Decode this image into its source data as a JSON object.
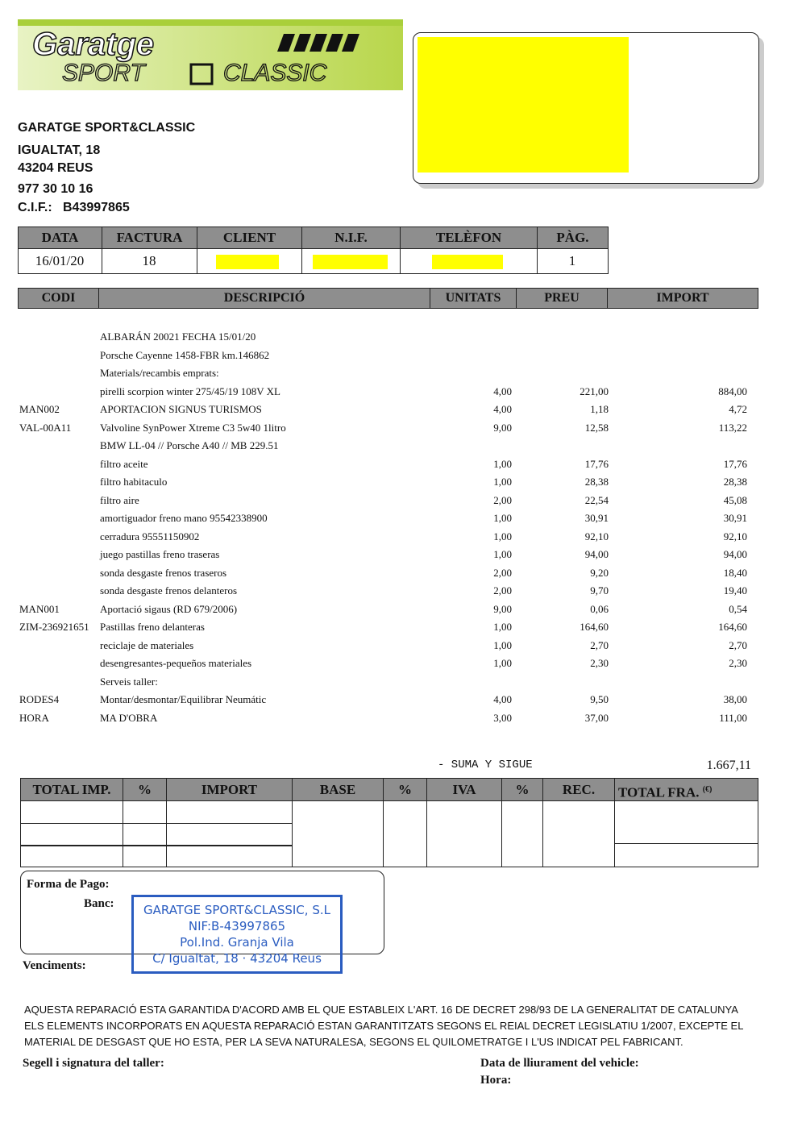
{
  "logo": {
    "line1": "Garatge",
    "line2": "SPORT",
    "line3": "CLASSIC"
  },
  "company": {
    "name": "GARATGE SPORT&CLASSIC",
    "address": "IGUALTAT, 18",
    "city": "43204 REUS",
    "phone": "977 30 10 16",
    "cif_label": "C.I.F.:",
    "cif": "B43997865"
  },
  "header_table": {
    "columns": [
      "DATA",
      "FACTURA",
      "CLIENT",
      "N.I.F.",
      "TELÈFON",
      "PÀG."
    ],
    "row": {
      "data": "16/01/20",
      "factura": "18",
      "pag": "1"
    }
  },
  "items": {
    "columns": [
      "CODI",
      "DESCRIPCIÓ",
      "UNITATS",
      "PREU",
      "IMPORT"
    ],
    "rows": [
      [
        null,
        "ALBARÁN 20021 FECHA 15/01/20",
        null,
        null,
        null
      ],
      [
        null,
        "Porsche Cayenne 1458-FBR km.146862",
        null,
        null,
        null
      ],
      [
        null,
        "Materials/recambis emprats:",
        null,
        null,
        null
      ],
      [
        null,
        "pirelli scorpion winter 275/45/19 108V XL",
        "4,00",
        "221,00",
        "884,00"
      ],
      [
        "MAN002",
        "APORTACION SIGNUS TURISMOS",
        "4,00",
        "1,18",
        "4,72"
      ],
      [
        "VAL-00A11",
        "Valvoline SynPower Xtreme C3 5w40 1litro",
        "9,00",
        "12,58",
        "113,22"
      ],
      [
        null,
        "BMW LL-04 // Porsche A40 // MB 229.51",
        null,
        null,
        null
      ],
      [
        null,
        "filtro aceite",
        "1,00",
        "17,76",
        "17,76"
      ],
      [
        null,
        "filtro habitaculo",
        "1,00",
        "28,38",
        "28,38"
      ],
      [
        null,
        "filtro aire",
        "2,00",
        "22,54",
        "45,08"
      ],
      [
        null,
        "amortiguador freno mano 95542338900",
        "1,00",
        "30,91",
        "30,91"
      ],
      [
        null,
        "cerradura 95551150902",
        "1,00",
        "92,10",
        "92,10"
      ],
      [
        null,
        "juego pastillas freno traseras",
        "1,00",
        "94,00",
        "94,00"
      ],
      [
        null,
        "sonda desgaste frenos traseros",
        "2,00",
        "9,20",
        "18,40"
      ],
      [
        null,
        "sonda desgaste frenos delanteros",
        "2,00",
        "9,70",
        "19,40"
      ],
      [
        "MAN001",
        "Aportació sigaus (RD 679/2006)",
        "9,00",
        "0,06",
        "0,54"
      ],
      [
        "ZIM-236921651",
        "Pastillas freno delanteras",
        "1,00",
        "164,60",
        "164,60"
      ],
      [
        null,
        "reciclaje de materiales",
        "1,00",
        "2,70",
        "2,70"
      ],
      [
        null,
        "desengresantes-pequeños materiales",
        "1,00",
        "2,30",
        "2,30"
      ],
      [
        null,
        "Serveis taller:",
        null,
        null,
        null
      ],
      [
        "RODES4",
        "Montar/desmontar/Equilibrar Neumátic",
        "4,00",
        "9,50",
        "38,00"
      ],
      [
        "HORA",
        "MA D'OBRA",
        "3,00",
        "37,00",
        "111,00"
      ]
    ]
  },
  "summary": {
    "label": "- SUMA Y SIGUE",
    "value": "1.667,11"
  },
  "totals_table": {
    "columns": [
      "TOTAL IMP.",
      "%",
      "IMPORT",
      "BASE",
      "%",
      "IVA",
      "%",
      "REC.",
      "TOTAL FRA."
    ],
    "currency": "(€)"
  },
  "payment": {
    "forma_label": "Forma de Pago:",
    "banc_label": "Banc:",
    "venciments_label": "Venciments:"
  },
  "stamp": {
    "lines": [
      "GARATGE SPORT&CLASSIC, S.L",
      "NIF:B-43997865",
      "Pol.Ind. Granja Vila",
      "C/ Igualtat, 18 · 43204 Reus"
    ]
  },
  "legal": [
    "AQUESTA REPARACIÓ ESTA GARANTIDA D'ACORD AMB EL QUE ESTABLEIX L'ART. 16 DE DECRET 298/93 DE LA GENERALITAT DE CATALUNYA",
    "ELS ELEMENTS INCORPORATS EN AQUESTA REPARACIÓ ESTAN GARANTITZATS SEGONS EL REIAL DECRET LEGISLATIU 1/2007, EXCEPTE EL",
    "MATERIAL DE DESGAST QUE HO ESTA, PER LA SEVA NATURALESA, SEGONS EL QUILOMETRATGE I L'US INDICAT PEL FABRICANT."
  ],
  "signature": {
    "taller": "Segell i signatura del taller:",
    "lliurament": "Data de lliurament del vehicle:",
    "hora": "Hora:"
  }
}
